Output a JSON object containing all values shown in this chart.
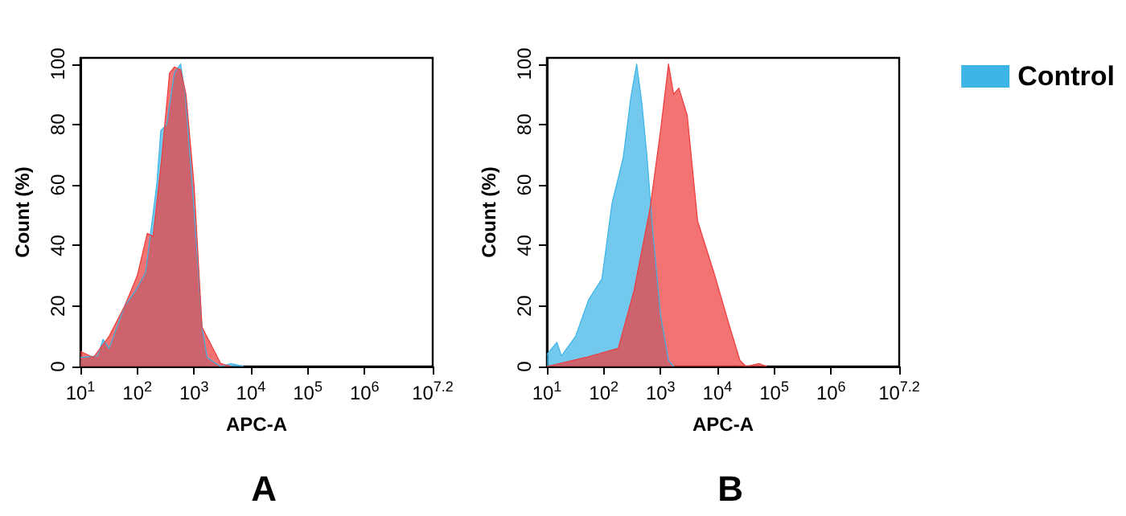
{
  "chart_data": [
    {
      "type": "area",
      "title": "A",
      "xlabel": "APC-A",
      "ylabel": "Count (%)",
      "log": "x",
      "legend": false,
      "grid": false,
      "marker": "none",
      "xlim": [
        10,
        15848932
      ],
      "xticks": [
        {
          "value": 10,
          "label": "10$^{1}$"
        },
        {
          "value": 100,
          "label": "10$^{2}$"
        },
        {
          "value": 1000,
          "label": "10$^{3}$"
        },
        {
          "value": 10000,
          "label": "10$^{4}$"
        },
        {
          "value": 100000,
          "label": "10$^{5}$"
        },
        {
          "value": 1000000,
          "label": "10$^{6}$"
        },
        {
          "value": 15848932,
          "label": "10$^{7.2}$"
        }
      ],
      "ylim": [
        0,
        102
      ],
      "yticks": [
        0,
        20,
        40,
        60,
        80,
        100
      ],
      "series": [
        {
          "color": "#3cb4e6",
          "x": [
            10,
            20,
            25,
            32,
            60,
            93,
            140,
            220,
            260,
            330,
            450,
            580,
            700,
            1000,
            1380,
            1700,
            2950,
            4500,
            7500
          ],
          "values": [
            3,
            3.5,
            9,
            6,
            20,
            25,
            31,
            60,
            78,
            80,
            97,
            100,
            90,
            52,
            13,
            3,
            0,
            1,
            0
          ]
        },
        {
          "color": "#ee3b3b",
          "x": [
            10,
            17,
            32,
            60,
            100,
            150,
            190,
            270,
            370,
            450,
            580,
            720,
            1000,
            1380,
            2950,
            4500
          ],
          "values": [
            5,
            3,
            10,
            20,
            30,
            44,
            43,
            69,
            97,
            99,
            98,
            90,
            60,
            13,
            1,
            0
          ]
        }
      ]
    },
    {
      "type": "area",
      "title": "B",
      "xlabel": "APC-A",
      "ylabel": "Count (%)",
      "log": "x",
      "legend": "top right",
      "grid": false,
      "marker": "none",
      "xlim": [
        10,
        15848932
      ],
      "xticks": [
        {
          "value": 10,
          "label": "10$^{1}$"
        },
        {
          "value": 100,
          "label": "10$^{2}$"
        },
        {
          "value": 1000,
          "label": "10$^{3}$"
        },
        {
          "value": 10000,
          "label": "10$^{4}$"
        },
        {
          "value": 100000,
          "label": "10$^{5}$"
        },
        {
          "value": 1000000,
          "label": "10$^{6}$"
        },
        {
          "value": 15848932,
          "label": "10$^{7.2}$"
        }
      ],
      "ylim": [
        0,
        102
      ],
      "yticks": [
        0,
        20,
        40,
        60,
        80,
        100
      ],
      "series": [
        {
          "name": "Control",
          "color": "#3cb4e6",
          "x": [
            10,
            15,
            18,
            32,
            54,
            93,
            140,
            220,
            300,
            380,
            470,
            580,
            720,
            1000,
            1380,
            1700
          ],
          "values": [
            4,
            8,
            3.5,
            10,
            22,
            29,
            54,
            69,
            89,
            100,
            87,
            69,
            46,
            17,
            2,
            0
          ]
        },
        {
          "color": "#ee3b3b",
          "x": [
            10,
            48,
            180,
            340,
            650,
            1000,
            1380,
            1700,
            2100,
            2950,
            4500,
            8700,
            16600,
            25000,
            32000,
            54000,
            74000
          ],
          "values": [
            0,
            3,
            6,
            25,
            52,
            78,
            100,
            90,
            92,
            83,
            48,
            31,
            13,
            2,
            0,
            1,
            0
          ]
        }
      ]
    }
  ]
}
